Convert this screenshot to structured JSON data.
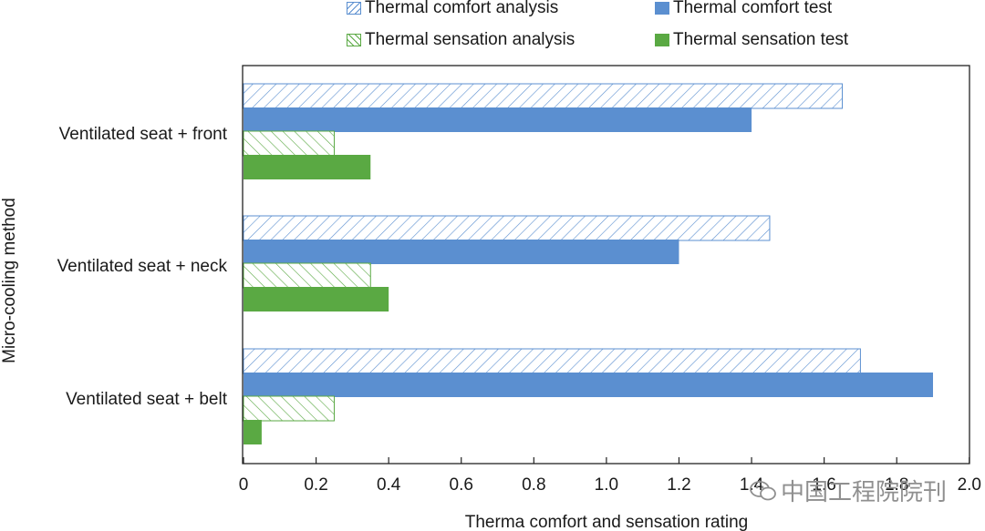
{
  "legend": {
    "comfort_analysis": "Thermal comfort analysis",
    "comfort_test": "Thermal comfort test",
    "sensation_analysis": "Thermal sensation analysis",
    "sensation_test": "Thermal sensation test"
  },
  "watermark": "中国工程院院刊",
  "colors": {
    "blue": "#5b8fd0",
    "green": "#5aa943",
    "axis": "#222222"
  },
  "chart_data": {
    "type": "bar",
    "orientation": "horizontal",
    "title": "",
    "xlabel": "Therma comfort and sensation rating",
    "ylabel": "Micro-cooling method",
    "xlim": [
      0,
      2.0
    ],
    "xticks": [
      0,
      0.2,
      0.4,
      0.6,
      0.8,
      1.0,
      1.2,
      1.4,
      1.6,
      1.8,
      2.0
    ],
    "xtick_labels": [
      "0",
      "0.2",
      "0.4",
      "0.6",
      "0.8",
      "1.0",
      "1.2",
      "1.4",
      "1.6",
      "1.8",
      "2.0"
    ],
    "categories": [
      "Ventilated seat + front",
      "Ventilated seat + neck",
      "Ventilated seat + belt"
    ],
    "series": [
      {
        "name": "Thermal comfort analysis",
        "style": "hatched",
        "color": "#5b8fd0",
        "values": [
          1.65,
          1.45,
          1.7
        ]
      },
      {
        "name": "Thermal comfort test",
        "style": "solid",
        "color": "#5b8fd0",
        "values": [
          1.4,
          1.2,
          1.9
        ]
      },
      {
        "name": "Thermal sensation analysis",
        "style": "hatched",
        "color": "#5aa943",
        "values": [
          0.25,
          0.35,
          0.25
        ]
      },
      {
        "name": "Thermal sensation test",
        "style": "solid",
        "color": "#5aa943",
        "values": [
          0.35,
          0.4,
          0.05
        ]
      }
    ],
    "legend_position": "top",
    "grid": false
  }
}
